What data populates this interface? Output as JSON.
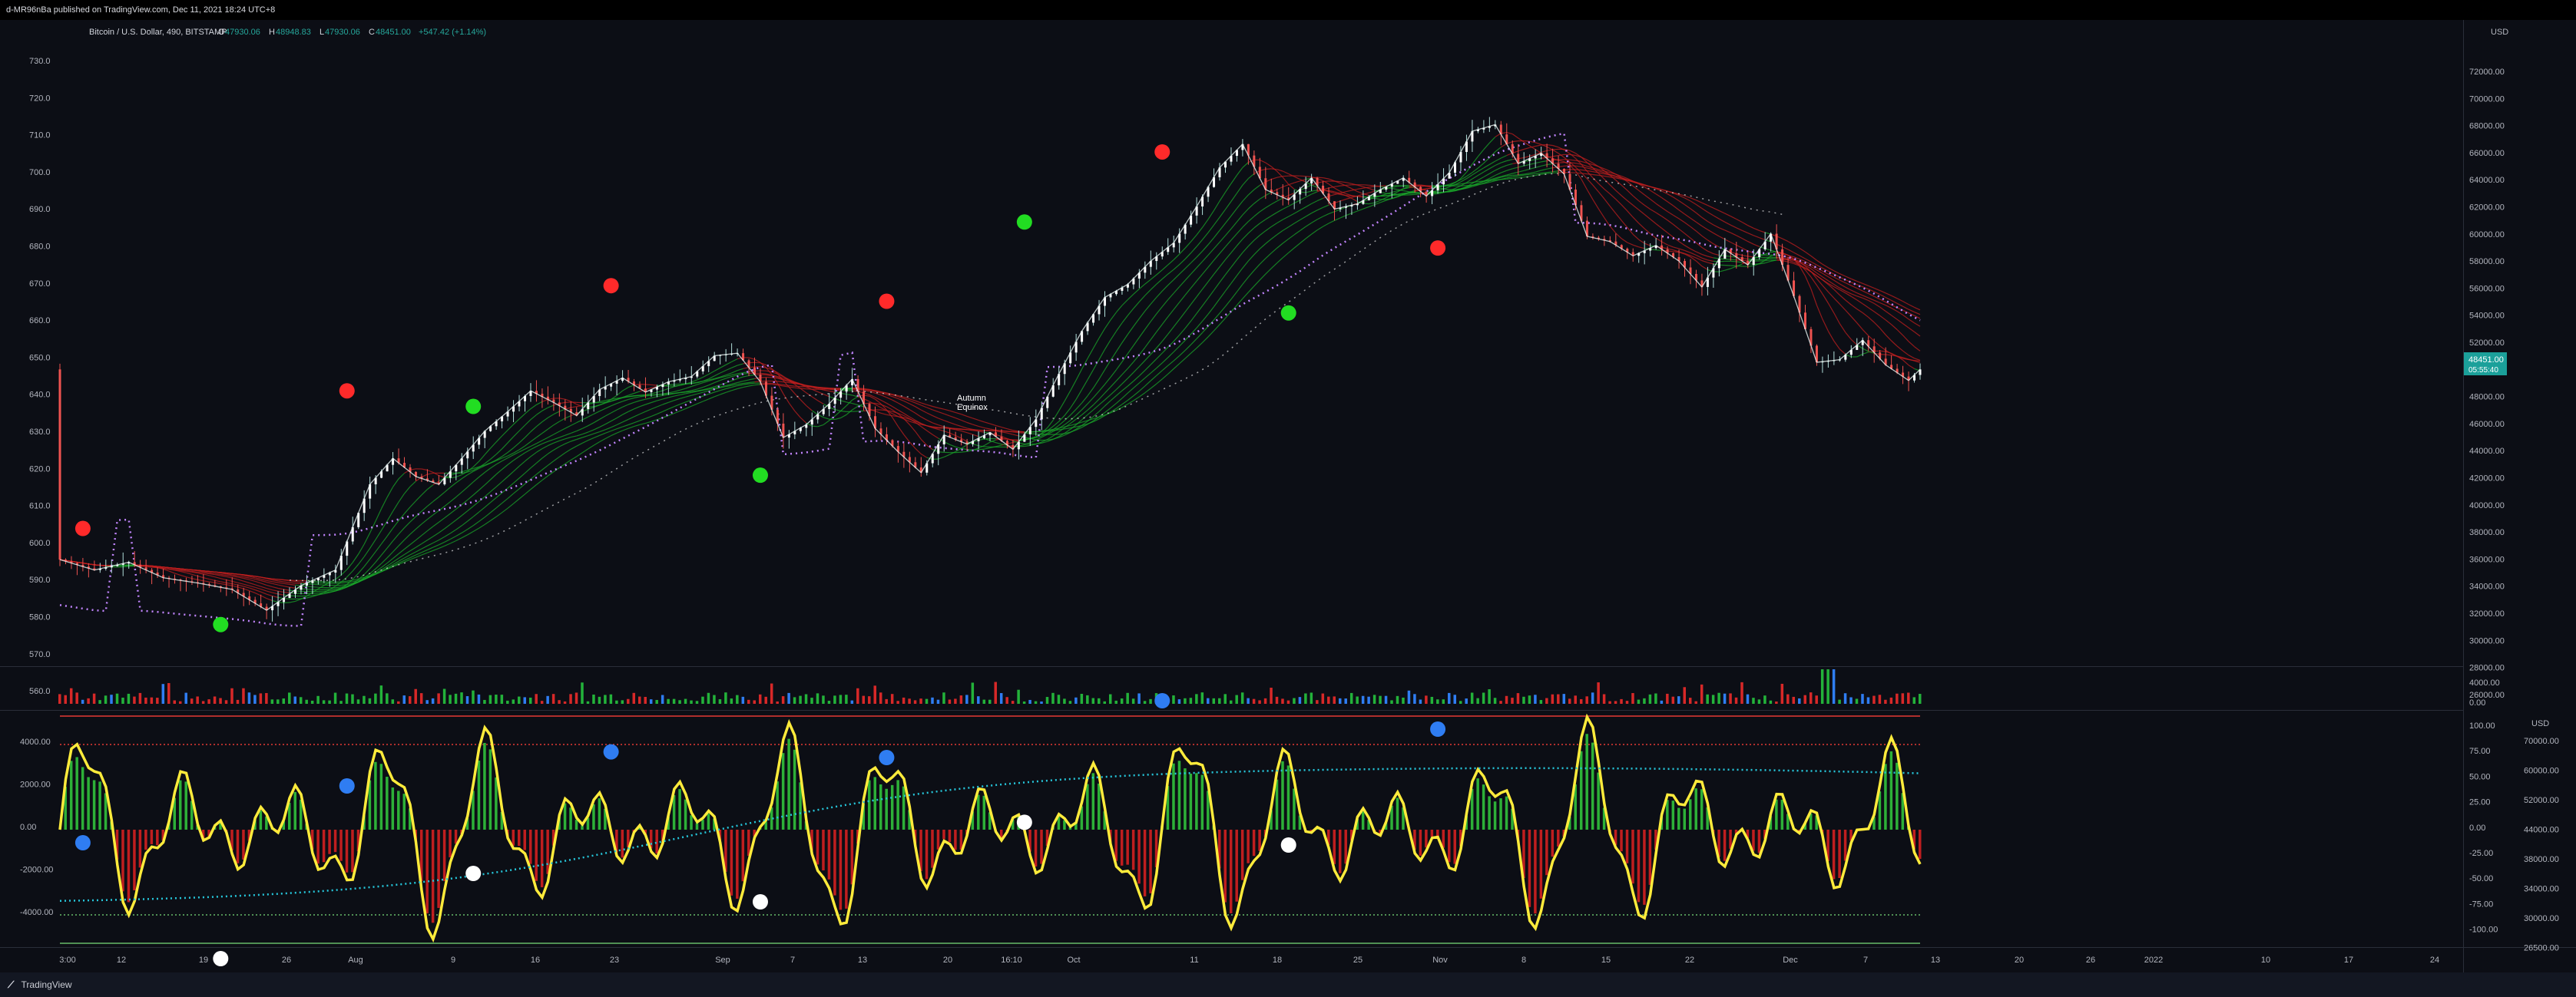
{
  "publisher_line": "d-MR96nBa published on TradingView.com, Dec 11, 2021 18:24 UTC+8",
  "footer": {
    "logo_glyph": "⟋",
    "brand": "TradingView"
  },
  "legend": {
    "symbol": "Bitcoin / U.S. Dollar, 490, BITSTAMP",
    "o_label": "O",
    "o_value": "47930.06",
    "h_label": "H",
    "h_value": "48948.83",
    "l_label": "L",
    "l_value": "47930.06",
    "c_label": "C",
    "c_value": "48451.00",
    "change": "+547.42 (+1.14%)"
  },
  "annotation": {
    "line1": "Autumn",
    "line2": "Equinox"
  },
  "colors": {
    "background": "#0c0e15",
    "up": "#26a69a",
    "down": "#ef5350",
    "ribbon_up": "#1aa52a",
    "ribbon_down": "#c01f1f",
    "osc": "#ffeb3b",
    "dotted_cyan": "#26c6da",
    "dotted_purple": "#c084fc",
    "green_dot": "#22dd22",
    "red_dot": "#ff2a2a",
    "blue_dot": "#2f7df2",
    "white_dot": "#ffffff"
  },
  "chart_data": [
    {
      "type": "line",
      "name": "price",
      "price_scale_title": "USD",
      "left_ticks": [
        "730.0",
        "720.0",
        "710.0",
        "700.0",
        "690.0",
        "680.0",
        "670.0",
        "660.0",
        "650.0",
        "640.0",
        "630.0",
        "620.0",
        "610.0",
        "600.0",
        "590.0",
        "580.0",
        "570.0",
        "560.0"
      ],
      "right_ticks": [
        "72000.00",
        "70000.00",
        "68000.00",
        "66000.00",
        "64000.00",
        "62000.00",
        "60000.00",
        "58000.00",
        "56000.00",
        "54000.00",
        "52000.00",
        "50000.00",
        "48000.00",
        "46000.00",
        "44000.00",
        "42000.00",
        "40000.00",
        "38000.00",
        "36000.00",
        "34000.00",
        "32000.00",
        "30000.00",
        "28000.00",
        "26000.00"
      ],
      "y_range": [
        25000,
        73000
      ],
      "x_axis_labels": [
        "3:00",
        "12",
        "19",
        "26",
        "Aug",
        "9",
        "16",
        "23",
        "Sep",
        "7",
        "13",
        "20",
        "16:10",
        "Oct",
        "11",
        "18",
        "25",
        "Nov",
        "8",
        "15",
        "22",
        "Dec",
        "7",
        "13",
        "20",
        "26",
        "2022",
        "10",
        "17",
        "24"
      ],
      "last_price": "48451.00",
      "countdown": "05:55:40",
      "series_points_day_price": [
        [
          0,
          33800
        ],
        [
          3,
          33000
        ],
        [
          6,
          33600
        ],
        [
          9,
          32400
        ],
        [
          12,
          32000
        ],
        [
          15,
          31500
        ],
        [
          18,
          29900
        ],
        [
          21,
          31800
        ],
        [
          24,
          33000
        ],
        [
          27,
          39600
        ],
        [
          29,
          41600
        ],
        [
          31,
          40200
        ],
        [
          33,
          39600
        ],
        [
          35,
          41600
        ],
        [
          37,
          43700
        ],
        [
          39,
          45200
        ],
        [
          41,
          46800
        ],
        [
          43,
          45900
        ],
        [
          45,
          44900
        ],
        [
          47,
          46900
        ],
        [
          49,
          47800
        ],
        [
          51,
          46700
        ],
        [
          53,
          47500
        ],
        [
          55,
          47900
        ],
        [
          57,
          49500
        ],
        [
          59,
          49700
        ],
        [
          61,
          47500
        ],
        [
          63,
          43200
        ],
        [
          65,
          44200
        ],
        [
          67,
          45800
        ],
        [
          69,
          47700
        ],
        [
          71,
          43900
        ],
        [
          73,
          42100
        ],
        [
          75,
          40500
        ],
        [
          77,
          43400
        ],
        [
          79,
          42700
        ],
        [
          81,
          43600
        ],
        [
          83,
          42300
        ],
        [
          85,
          44600
        ],
        [
          87,
          48100
        ],
        [
          89,
          51400
        ],
        [
          91,
          54000
        ],
        [
          93,
          55000
        ],
        [
          95,
          56800
        ],
        [
          97,
          58200
        ],
        [
          99,
          61000
        ],
        [
          101,
          64000
        ],
        [
          103,
          65800
        ],
        [
          105,
          62300
        ],
        [
          107,
          61500
        ],
        [
          109,
          63200
        ],
        [
          111,
          60800
        ],
        [
          113,
          61200
        ],
        [
          115,
          62300
        ],
        [
          117,
          63200
        ],
        [
          119,
          61800
        ],
        [
          121,
          63600
        ],
        [
          123,
          66800
        ],
        [
          125,
          67300
        ],
        [
          127,
          64300
        ],
        [
          129,
          65100
        ],
        [
          131,
          63500
        ],
        [
          133,
          58700
        ],
        [
          135,
          58300
        ],
        [
          137,
          57200
        ],
        [
          139,
          58000
        ],
        [
          141,
          56800
        ],
        [
          143,
          54800
        ],
        [
          145,
          57700
        ],
        [
          147,
          56500
        ],
        [
          149,
          58900
        ],
        [
          151,
          54100
        ],
        [
          153,
          49000
        ],
        [
          155,
          49200
        ],
        [
          157,
          50700
        ],
        [
          159,
          48800
        ],
        [
          161,
          47600
        ],
        [
          162,
          48451
        ]
      ],
      "volume_scale_ticks": [
        "4000.00",
        "0.00"
      ]
    },
    {
      "type": "line",
      "name": "oscillator",
      "left_ticks": [
        "4000.00",
        "2000.00",
        "0.00",
        "-2000.00",
        "-4000.00"
      ],
      "right_ticks_inner": [
        "100.00",
        "75.00",
        "50.00",
        "25.00",
        "0.00",
        "-25.00",
        "-50.00",
        "-75.00",
        "-100.00"
      ],
      "right_scale_title": "USD",
      "right_ticks_outer": [
        "70000.00",
        "60000.00",
        "52000.00",
        "44000.00",
        "38000.00",
        "34000.00",
        "30000.00",
        "26500.00"
      ],
      "levels": [
        100,
        75,
        -75,
        -100
      ]
    }
  ]
}
